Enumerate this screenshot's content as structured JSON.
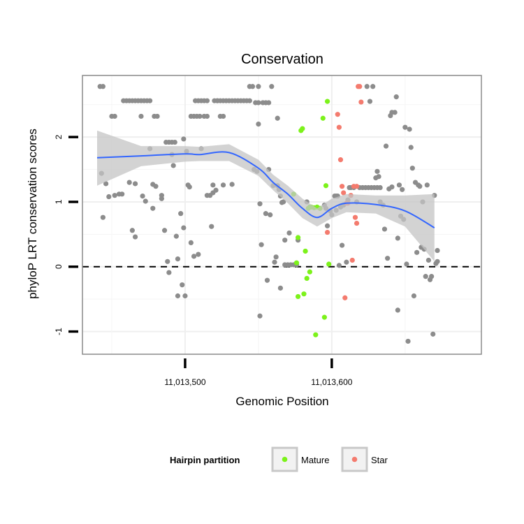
{
  "chart_data": {
    "type": "scatter",
    "title": "Conservation",
    "xlabel": "Genomic Position",
    "ylabel": "phyloP LRT conservation scores",
    "xlim": [
      11013430,
      11013702
    ],
    "ylim": [
      -1.35,
      2.95
    ],
    "x_ticks": [
      {
        "value": 11013500,
        "label": "11,013,500"
      },
      {
        "value": 11013600,
        "label": "11,013,600"
      }
    ],
    "y_ticks": [
      {
        "value": -1,
        "label": "-1"
      },
      {
        "value": 0,
        "label": "0"
      },
      {
        "value": 1,
        "label": "1"
      },
      {
        "value": 2,
        "label": "2"
      }
    ],
    "grid": true,
    "reference_line": {
      "y": 0,
      "style": "dashed"
    },
    "legend": {
      "title": "Hairpin partition",
      "position": "bottom",
      "entries": [
        {
          "label": "Mature",
          "color": "#7cf21a"
        },
        {
          "label": "Star",
          "color": "#f47b6e"
        }
      ]
    },
    "colors": {
      "other": "#8c8c8c",
      "Mature": "#7cf21a",
      "Star": "#f47b6e",
      "smooth": "#3366ff",
      "ribbon": "#c4c4c4"
    },
    "series": [
      {
        "name": "other",
        "points": [
          [
            11013442,
            2.78
          ],
          [
            11013444,
            2.78
          ],
          [
            11013446,
            1.28
          ],
          [
            11013444,
            0.76
          ],
          [
            11013443,
            1.44
          ],
          [
            11013448,
            1.08
          ],
          [
            11013450,
            2.32
          ],
          [
            11013452,
            1.1
          ],
          [
            11013455,
            1.12
          ],
          [
            11013457,
            1.12
          ],
          [
            11013452,
            2.32
          ],
          [
            11013458,
            2.56
          ],
          [
            11013460,
            2.56
          ],
          [
            11013462,
            2.56
          ],
          [
            11013464,
            2.56
          ],
          [
            11013466,
            2.56
          ],
          [
            11013468,
            2.56
          ],
          [
            11013470,
            2.56
          ],
          [
            11013472,
            2.56
          ],
          [
            11013474,
            2.56
          ],
          [
            11013476,
            2.56
          ],
          [
            11013462,
            1.3
          ],
          [
            11013464,
            0.56
          ],
          [
            11013466,
            1.28
          ],
          [
            11013466,
            0.46
          ],
          [
            11013471,
            1.09
          ],
          [
            11013473,
            1.01
          ],
          [
            11013470,
            2.32
          ],
          [
            11013479,
            2.32
          ],
          [
            11013481,
            2.32
          ],
          [
            11013478,
            1.27
          ],
          [
            11013478,
            0.9
          ],
          [
            11013480,
            1.24
          ],
          [
            11013476,
            1.82
          ],
          [
            11013484,
            1.1
          ],
          [
            11013484,
            1.05
          ],
          [
            11013486,
            0.56
          ],
          [
            11013487,
            1.92
          ],
          [
            11013489,
            1.92
          ],
          [
            11013491,
            1.92
          ],
          [
            11013493,
            1.92
          ],
          [
            11013488,
            0.08
          ],
          [
            11013489,
            -0.09
          ],
          [
            11013491,
            1.73
          ],
          [
            11013492,
            1.56
          ],
          [
            11013494,
            0.47
          ],
          [
            11013495,
            -0.45
          ],
          [
            11013495,
            0.12
          ],
          [
            11013497,
            0.82
          ],
          [
            11013498,
            -0.28
          ],
          [
            11013499,
            0.6
          ],
          [
            11013500,
            -0.45
          ],
          [
            11013504,
            2.32
          ],
          [
            11013506,
            2.32
          ],
          [
            11013508,
            2.32
          ],
          [
            11013510,
            2.32
          ],
          [
            11013499,
            1.97
          ],
          [
            11013501,
            1.78
          ],
          [
            11013502,
            1.26
          ],
          [
            11013503,
            1.23
          ],
          [
            11013504,
            0.37
          ],
          [
            11013506,
            0.16
          ],
          [
            11013507,
            2.56
          ],
          [
            11013509,
            2.56
          ],
          [
            11013511,
            2.56
          ],
          [
            11013513,
            2.56
          ],
          [
            11013515,
            2.56
          ],
          [
            11013509,
            0.19
          ],
          [
            11013511,
            1.82
          ],
          [
            11013513,
            2.32
          ],
          [
            11013515,
            2.32
          ],
          [
            11013515,
            1.1
          ],
          [
            11013517,
            1.1
          ],
          [
            11013519,
            1.26
          ],
          [
            11013518,
            0.62
          ],
          [
            11013520,
            2.56
          ],
          [
            11013522,
            2.56
          ],
          [
            11013524,
            2.32
          ],
          [
            11013526,
            2.32
          ],
          [
            11013519,
            1.14
          ],
          [
            11013521,
            1.18
          ],
          [
            11013522,
            2.56
          ],
          [
            11013524,
            2.56
          ],
          [
            11013526,
            2.56
          ],
          [
            11013528,
            2.56
          ],
          [
            11013530,
            2.56
          ],
          [
            11013532,
            2.56
          ],
          [
            11013534,
            2.56
          ],
          [
            11013536,
            2.56
          ],
          [
            11013538,
            2.56
          ],
          [
            11013540,
            2.56
          ],
          [
            11013542,
            2.56
          ],
          [
            11013544,
            2.56
          ],
          [
            11013544,
            2.78
          ],
          [
            11013546,
            2.78
          ],
          [
            11013548,
            2.53
          ],
          [
            11013550,
            2.53
          ],
          [
            11013550,
            2.78
          ],
          [
            11013526,
            1.26
          ],
          [
            11013532,
            1.27
          ],
          [
            11013547,
            1.5
          ],
          [
            11013549,
            1.47
          ],
          [
            11013550,
            2.2
          ],
          [
            11013551,
            0.97
          ],
          [
            11013551,
            -0.76
          ],
          [
            11013552,
            0.34
          ],
          [
            11013553,
            2.53
          ],
          [
            11013555,
            2.53
          ],
          [
            11013557,
            2.53
          ],
          [
            11013555,
            0.82
          ],
          [
            11013556,
            -0.21
          ],
          [
            11013557,
            1.5
          ],
          [
            11013558,
            0.8
          ],
          [
            11013559,
            2.78
          ],
          [
            11013560,
            1.25
          ],
          [
            11013561,
            0.07
          ],
          [
            11013562,
            0.15
          ],
          [
            11013563,
            1.25
          ],
          [
            11013563,
            2.29
          ],
          [
            11013564,
            1.19
          ],
          [
            11013565,
            1.09
          ],
          [
            11013565,
            -0.33
          ],
          [
            11013566,
            0.99
          ],
          [
            11013567,
            1.0
          ],
          [
            11013568,
            0.41
          ],
          [
            11013568,
            0.03
          ],
          [
            11013570,
            0.03
          ],
          [
            11013572,
            0.03
          ],
          [
            11013574,
            0.03
          ],
          [
            11013576,
            0.03
          ],
          [
            11013571,
            0.52
          ],
          [
            11013577,
            0.41
          ],
          [
            11013583,
            1.0
          ],
          [
            11013595,
            0.95
          ],
          [
            11013596,
            0.9
          ],
          [
            11013597,
            0.63
          ],
          [
            11013599,
            0.86
          ],
          [
            11013600,
            0.8
          ],
          [
            11013602,
            1.09
          ],
          [
            11013603,
            1.09
          ],
          [
            11013604,
            1.09
          ],
          [
            11013603,
            0.87
          ],
          [
            11013605,
            0.02
          ],
          [
            11013606,
            0.92
          ],
          [
            11013607,
            0.33
          ],
          [
            11013608,
            0.95
          ],
          [
            11013610,
            0.07
          ],
          [
            11013611,
            1.03
          ],
          [
            11013612,
            1.22
          ],
          [
            11013613,
            1.22
          ],
          [
            11013615,
            1.22
          ],
          [
            11013617,
            1.0
          ],
          [
            11013619,
            1.22
          ],
          [
            11013621,
            1.22
          ],
          [
            11013623,
            1.22
          ],
          [
            11013625,
            1.22
          ],
          [
            11013627,
            1.22
          ],
          [
            11013629,
            1.22
          ],
          [
            11013631,
            1.22
          ],
          [
            11013633,
            1.22
          ],
          [
            11013624,
            2.78
          ],
          [
            11013626,
            2.55
          ],
          [
            11013628,
            2.78
          ],
          [
            11013630,
            1.37
          ],
          [
            11013631,
            1.47
          ],
          [
            11013632,
            1.39
          ],
          [
            11013633,
            1.0
          ],
          [
            11013635,
            0.95
          ],
          [
            11013636,
            0.58
          ],
          [
            11013637,
            1.86
          ],
          [
            11013638,
            0.13
          ],
          [
            11013639,
            1.2
          ],
          [
            11013640,
            2.33
          ],
          [
            11013641,
            1.23
          ],
          [
            11013641,
            2.38
          ],
          [
            11013643,
            2.38
          ],
          [
            11013644,
            2.62
          ],
          [
            11013645,
            0.44
          ],
          [
            11013645,
            -0.67
          ],
          [
            11013646,
            1.26
          ],
          [
            11013647,
            0.78
          ],
          [
            11013648,
            1.19
          ],
          [
            11013649,
            0.73
          ],
          [
            11013650,
            2.15
          ],
          [
            11013651,
            0.04
          ],
          [
            11013652,
            -1.15
          ],
          [
            11013653,
            2.12
          ],
          [
            11013654,
            1.84
          ],
          [
            11013655,
            1.52
          ],
          [
            11013656,
            -0.45
          ],
          [
            11013657,
            1.3
          ],
          [
            11013658,
            0.22
          ],
          [
            11013659,
            1.26
          ],
          [
            11013660,
            1.24
          ],
          [
            11013661,
            0.3
          ],
          [
            11013662,
            1.0
          ],
          [
            11013663,
            0.27
          ],
          [
            11013664,
            -0.15
          ],
          [
            11013665,
            1.26
          ],
          [
            11013666,
            0.1
          ],
          [
            11013667,
            -0.2
          ],
          [
            11013668,
            -0.15
          ],
          [
            11013669,
            -1.04
          ],
          [
            11013670,
            1.1
          ],
          [
            11013671,
            0.05
          ],
          [
            11013672,
            0.25
          ],
          [
            11013672,
            0.08
          ]
        ]
      },
      {
        "name": "Mature",
        "points": [
          [
            11013574,
            1.12
          ],
          [
            11013577,
            0.45
          ],
          [
            11013576,
            0.06
          ],
          [
            11013577,
            -0.46
          ],
          [
            11013579,
            2.1
          ],
          [
            11013580,
            2.13
          ],
          [
            11013582,
            0.24
          ],
          [
            11013581,
            -0.42
          ],
          [
            11013583,
            -0.18
          ],
          [
            11013584,
            0.9
          ],
          [
            11013585,
            -0.08
          ],
          [
            11013585,
            0.92
          ],
          [
            11013586,
            0.92
          ],
          [
            11013588,
            0.91
          ],
          [
            11013589,
            -1.05
          ],
          [
            11013590,
            0.92
          ],
          [
            11013592,
            0.9
          ],
          [
            11013594,
            2.29
          ],
          [
            11013595,
            -0.78
          ],
          [
            11013596,
            1.25
          ],
          [
            11013597,
            2.55
          ],
          [
            11013598,
            0.04
          ]
        ]
      },
      {
        "name": "Star",
        "points": [
          [
            11013597,
            0.53
          ],
          [
            11013604,
            2.35
          ],
          [
            11013606,
            1.65
          ],
          [
            11013605,
            2.15
          ],
          [
            11013607,
            1.24
          ],
          [
            11013608,
            1.14
          ],
          [
            11013609,
            -0.48
          ],
          [
            11013610,
            0.98
          ],
          [
            11013611,
            0.98
          ],
          [
            11013613,
            1.1
          ],
          [
            11013614,
            0.1
          ],
          [
            11013615,
            1.24
          ],
          [
            11013616,
            0.76
          ],
          [
            11013617,
            0.67
          ],
          [
            11013618,
            2.78
          ],
          [
            11013619,
            2.78
          ],
          [
            11013620,
            2.54
          ],
          [
            11013617,
            1.24
          ]
        ]
      }
    ],
    "smooth": {
      "x": [
        11013440,
        11013470,
        11013500,
        11013510,
        11013530,
        11013550,
        11013560,
        11013570,
        11013580,
        11013590,
        11013600,
        11013610,
        11013630,
        11013650,
        11013670
      ],
      "y": [
        1.68,
        1.71,
        1.74,
        1.73,
        1.76,
        1.52,
        1.3,
        1.12,
        0.9,
        0.76,
        0.9,
        0.98,
        0.96,
        0.86,
        0.6
      ],
      "lower": [
        1.25,
        1.55,
        1.62,
        1.63,
        1.63,
        1.4,
        1.18,
        0.98,
        0.75,
        0.62,
        0.75,
        0.84,
        0.82,
        0.62,
        0.08
      ],
      "upper": [
        2.1,
        1.86,
        1.86,
        1.85,
        1.89,
        1.65,
        1.42,
        1.25,
        1.05,
        0.9,
        1.05,
        1.12,
        1.1,
        1.1,
        1.12
      ]
    }
  }
}
